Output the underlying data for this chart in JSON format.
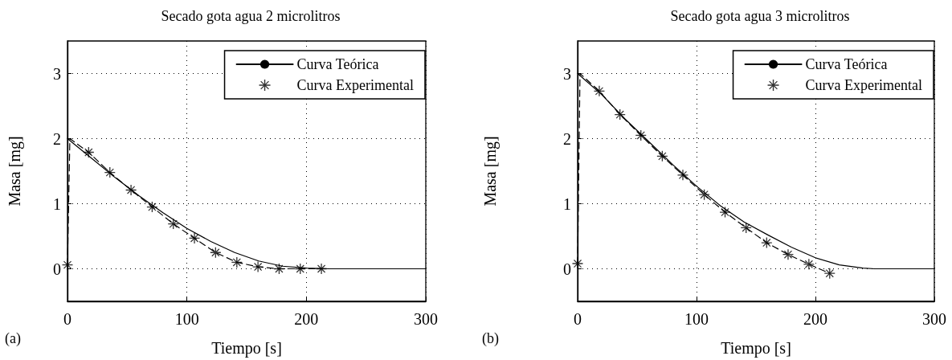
{
  "chart_data": [
    {
      "type": "line",
      "title": "Secado gota agua 2 microlitros",
      "xlabel": "Tiempo [s]",
      "ylabel": "Masa [mg]",
      "xlim": [
        0,
        300
      ],
      "ylim": [
        -0.5,
        3.5
      ],
      "xticks": [
        0,
        100,
        200,
        300
      ],
      "yticks": [
        0,
        1,
        2,
        3
      ],
      "grid": true,
      "legend": "top right",
      "annotations": [
        "(a)"
      ],
      "series": [
        {
          "name": "Curva Teórica",
          "color": "#000000",
          "marker": "none",
          "line_style": "solid",
          "x": [
            0,
            20,
            40,
            60,
            80,
            100,
            120,
            140,
            160,
            180,
            200,
            220,
            300
          ],
          "values": [
            2,
            1.7,
            1.4,
            1.12,
            0.86,
            0.62,
            0.42,
            0.25,
            0.12,
            0.04,
            0.01,
            0,
            0
          ]
        },
        {
          "name": "Curva Experimental",
          "type": "scatter",
          "color": "#000000",
          "marker": "star",
          "x": [
            0,
            17.7,
            35.5,
            53.2,
            70.9,
            88.6,
            106.3,
            124,
            141.8,
            159.5,
            177.2,
            194.9,
            212.6
          ],
          "values": [
            0.06,
            1.79,
            1.48,
            1.21,
            0.95,
            0.69,
            0.47,
            0.25,
            0.1,
            0.03,
            0,
            0,
            0
          ]
        },
        {
          "type": "line",
          "color": "#000000",
          "marker": "none",
          "line_style": "dashed",
          "x": [
            0,
            2,
            17.7,
            35.5,
            53.2,
            70.9,
            88.6,
            106.3,
            124,
            141.8,
            159.5,
            177.2,
            194.9,
            212.6
          ],
          "values": [
            0.06,
            2,
            1.79,
            1.48,
            1.21,
            0.95,
            0.69,
            0.47,
            0.25,
            0.1,
            0.03,
            0,
            0,
            0
          ]
        }
      ]
    },
    {
      "type": "line",
      "title": "Secado gota agua 3 microlitros",
      "xlabel": "Tiempo [s]",
      "ylabel": "Masa [mg]",
      "xlim": [
        0,
        300
      ],
      "ylim": [
        -0.5,
        3.5
      ],
      "xticks": [
        0,
        100,
        200,
        300
      ],
      "yticks": [
        0,
        1,
        2,
        3
      ],
      "grid": true,
      "legend": "top right",
      "annotations": [
        "(b)"
      ],
      "series": [
        {
          "name": "Curva Teórica",
          "color": "#000000",
          "marker": "none",
          "line_style": "solid",
          "x": [
            0,
            20,
            40,
            60,
            80,
            100,
            120,
            140,
            160,
            180,
            200,
            220,
            240,
            250,
            300
          ],
          "values": [
            3,
            2.68,
            2.3,
            1.95,
            1.6,
            1.27,
            0.97,
            0.72,
            0.52,
            0.33,
            0.17,
            0.06,
            0.01,
            0,
            0
          ]
        },
        {
          "name": "Curva Experimental",
          "type": "scatter",
          "color": "#000000",
          "marker": "star",
          "x": [
            0,
            18.2,
            35.6,
            53.2,
            71.2,
            88.5,
            106.5,
            124,
            141.7,
            159,
            177,
            194.5,
            212
          ],
          "values": [
            0.08,
            2.73,
            2.37,
            2.05,
            1.73,
            1.44,
            1.14,
            0.87,
            0.63,
            0.4,
            0.22,
            0.07,
            -0.07
          ]
        },
        {
          "type": "line",
          "color": "#000000",
          "marker": "none",
          "line_style": "dashed",
          "x": [
            0,
            2,
            18.2,
            35.6,
            53.2,
            71.2,
            88.5,
            106.5,
            124,
            141.7,
            159,
            177,
            194.5,
            212
          ],
          "values": [
            0.08,
            3,
            2.73,
            2.37,
            2.05,
            1.73,
            1.44,
            1.14,
            0.87,
            0.63,
            0.4,
            0.22,
            0.07,
            -0.07
          ]
        }
      ]
    }
  ]
}
